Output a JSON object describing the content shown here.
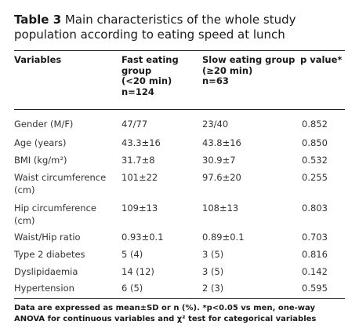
{
  "title": {
    "label": "Table 3",
    "text": "Main characteristics of the whole study population according to eating speed at lunch"
  },
  "header": {
    "variables": "Variables",
    "fast": [
      "Fast eating",
      "group",
      "(<20 min)",
      "n=124"
    ],
    "slow": [
      "Slow eating group",
      "(≥20 min)",
      "n=63"
    ],
    "pvalue": "p value*"
  },
  "rows": [
    {
      "variable": "Gender (M/F)",
      "fast": "47/77",
      "slow": "23/40",
      "p": "0.852"
    },
    {
      "variable": "Age (years)",
      "fast": "43.3±16",
      "slow": "43.8±16",
      "p": "0.850"
    },
    {
      "variable": "BMI (kg/m²)",
      "fast": "31.7±8",
      "slow": "30.9±7",
      "p": "0.532"
    },
    {
      "variable": "Waist circumference",
      "variable2": "(cm)",
      "fast": "101±22",
      "slow": "97.6±20",
      "p": "0.255"
    },
    {
      "variable": "Hip circumference",
      "variable2": "(cm)",
      "fast": "109±13",
      "slow": "108±13",
      "p": "0.803"
    },
    {
      "variable": "Waist/Hip ratio",
      "fast": "0.93±0.1",
      "slow": "0.89±0.1",
      "p": "0.703"
    },
    {
      "variable": "Type 2 diabetes",
      "fast": "5 (4)",
      "slow": "3 (5)",
      "p": "0.816"
    },
    {
      "variable": "Dyslipidaemia",
      "fast": "14 (12)",
      "slow": "3 (5)",
      "p": "0.142"
    },
    {
      "variable": "Hypertension",
      "fast": "6 (5)",
      "slow": "2 (3)",
      "p": "0.595"
    }
  ],
  "footnote": "Data are expressed as mean±SD or n (%). *p<0.05 vs men, one-way ANOVA for continuous variables and χ² test for categorical variables"
}
